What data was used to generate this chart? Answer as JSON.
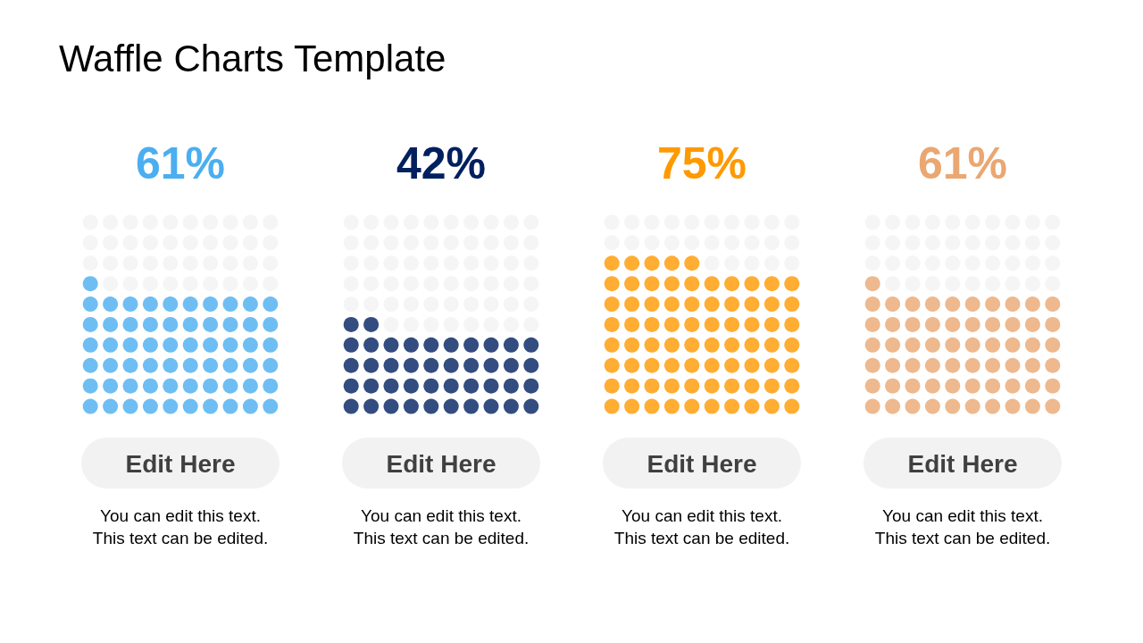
{
  "chart_data": {
    "type": "other",
    "title": "Waffle Charts Template",
    "categories": [
      "Edit Here",
      "Edit Here",
      "Edit Here",
      "Edit Here"
    ],
    "values": [
      61,
      42,
      75,
      61
    ],
    "colors": [
      "#4baef0",
      "#002060",
      "#ff9900",
      "#eaa772"
    ],
    "value_labels": [
      "61%",
      "42%",
      "75%",
      "61%"
    ],
    "annotations": [
      "You can edit this text.\nThis text can be edited.",
      "You can edit this text.\nThis text can be edited.",
      "You can edit this text.\nThis text can be edited.",
      "You can edit this text.\nThis text can be edited."
    ]
  }
}
